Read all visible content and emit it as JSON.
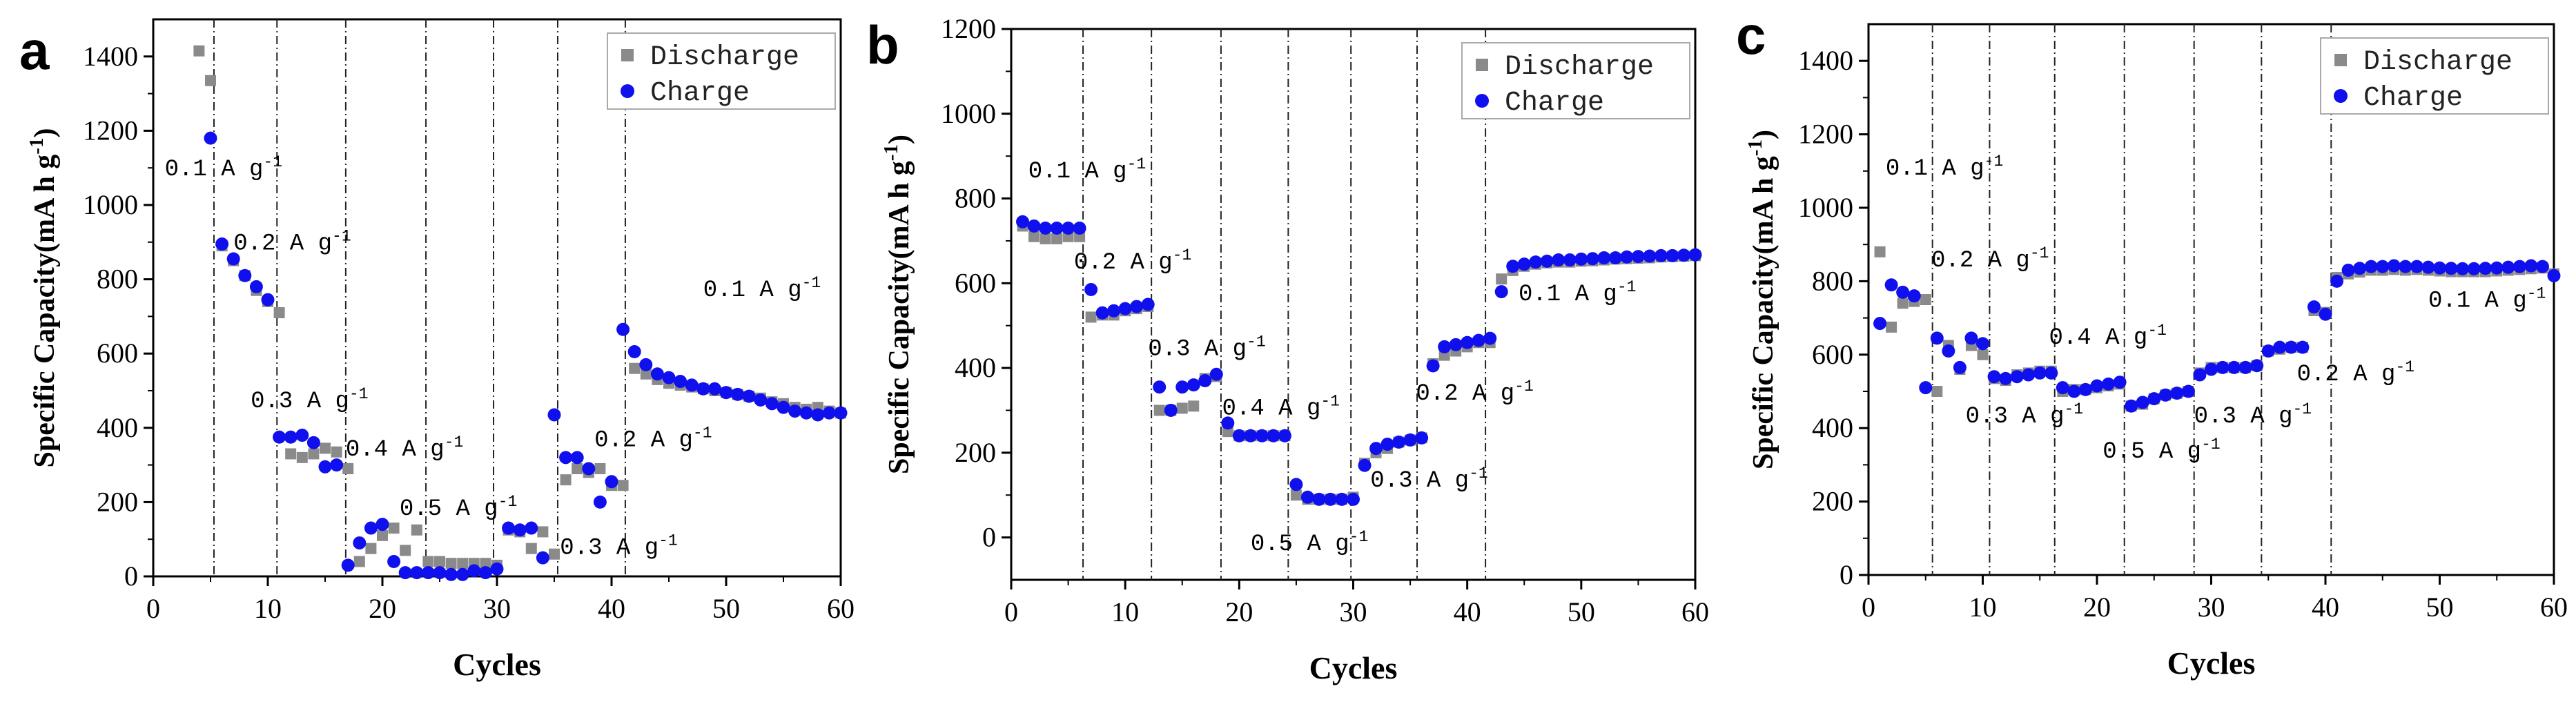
{
  "figure": {
    "panels": [
      "a",
      "b",
      "c"
    ],
    "colors": {
      "discharge": "#8a8a8a",
      "charge": "#1010ee",
      "axis": "#000000",
      "legend_border": "#aaaaaa"
    }
  },
  "chart_data": [
    {
      "type": "scatter",
      "panel_letter": "a",
      "xlabel": "Cycles",
      "ylabel": "Specific Capacity(mA h g",
      "ylabel_sup": "-1",
      "ylabel_end": ")",
      "xlim": [
        0,
        60
      ],
      "ylim": [
        0,
        1500
      ],
      "xticks": [
        0,
        10,
        20,
        30,
        40,
        50,
        60
      ],
      "yticks": [
        0,
        200,
        400,
        600,
        800,
        1000,
        1200,
        1400
      ],
      "legend": [
        "Discharge",
        "Charge"
      ],
      "legend_position": "top-right",
      "dividers": [
        5.3,
        10.8,
        16.8,
        23.8,
        29.7,
        35.3,
        41.2
      ],
      "annotations": [
        {
          "text": "0.1 A g",
          "x": 1,
          "y": 1080
        },
        {
          "text": "0.2 A g",
          "x": 7,
          "y": 880
        },
        {
          "text": "0.3 A g",
          "x": 8.5,
          "y": 455
        },
        {
          "text": "0.4 A g",
          "x": 16.8,
          "y": 325
        },
        {
          "text": "0.5 A g",
          "x": 21.5,
          "y": 165
        },
        {
          "text": "0.3 A g",
          "x": 35.5,
          "y": 60
        },
        {
          "text": "0.2 A g",
          "x": 38.5,
          "y": 350
        },
        {
          "text": "0.1 A g",
          "x": 48,
          "y": 755
        }
      ],
      "series": [
        {
          "name": "Discharge",
          "marker": "square",
          "x": [
            4,
            5,
            6,
            7,
            8,
            9,
            10,
            11,
            12,
            13,
            14,
            15,
            16,
            17,
            18,
            19,
            20,
            21,
            22,
            23,
            24,
            25,
            26,
            27,
            28,
            29,
            30,
            31,
            32,
            33,
            34,
            35,
            36,
            37,
            38,
            39,
            40,
            41,
            42,
            43,
            44,
            45,
            46,
            47,
            48,
            49,
            50,
            51,
            52,
            53,
            54,
            55,
            56,
            57,
            58,
            59,
            60
          ],
          "values": [
            1415,
            1335,
            890,
            850,
            810,
            770,
            740,
            710,
            330,
            320,
            330,
            345,
            335,
            290,
            40,
            75,
            110,
            130,
            70,
            125,
            40,
            40,
            35,
            35,
            35,
            35,
            30,
            125,
            120,
            75,
            120,
            60,
            260,
            290,
            280,
            290,
            245,
            245,
            560,
            545,
            530,
            520,
            515,
            510,
            505,
            500,
            495,
            490,
            485,
            480,
            470,
            465,
            455,
            450,
            455,
            445,
            440
          ]
        },
        {
          "name": "Charge",
          "marker": "circle",
          "x": [
            5,
            6,
            7,
            8,
            9,
            10,
            11,
            12,
            13,
            14,
            15,
            16,
            17,
            18,
            19,
            20,
            21,
            22,
            23,
            24,
            25,
            26,
            27,
            28,
            29,
            30,
            31,
            32,
            33,
            34,
            35,
            36,
            37,
            38,
            39,
            40,
            41,
            42,
            43,
            44,
            45,
            46,
            47,
            48,
            49,
            50,
            51,
            52,
            53,
            54,
            55,
            56,
            57,
            58,
            59,
            60
          ],
          "values": [
            1180,
            895,
            855,
            810,
            780,
            745,
            375,
            375,
            380,
            360,
            295,
            300,
            30,
            90,
            130,
            140,
            40,
            10,
            10,
            10,
            10,
            5,
            5,
            15,
            10,
            20,
            130,
            125,
            130,
            50,
            435,
            320,
            320,
            290,
            200,
            255,
            665,
            605,
            570,
            545,
            535,
            525,
            515,
            505,
            505,
            495,
            490,
            485,
            475,
            465,
            455,
            445,
            440,
            435,
            440,
            440
          ]
        }
      ]
    },
    {
      "type": "scatter",
      "panel_letter": "b",
      "xlabel": "Cycles",
      "ylabel": "Specific Capacity(mA h g",
      "ylabel_sup": "-1",
      "ylabel_end": ")",
      "xlim": [
        0,
        60
      ],
      "ylim": [
        -100,
        1200
      ],
      "xticks": [
        0,
        10,
        20,
        30,
        40,
        50,
        60
      ],
      "yticks": [
        0,
        200,
        400,
        600,
        800,
        1000,
        1200
      ],
      "legend": [
        "Discharge",
        "Charge"
      ],
      "legend_position": "top-right",
      "dividers": [
        6.3,
        12.3,
        18.4,
        24.3,
        29.8,
        35.6,
        41.6
      ],
      "annotations": [
        {
          "text": "0.1 A g",
          "x": 1.5,
          "y": 850
        },
        {
          "text": "0.2 A g",
          "x": 5.5,
          "y": 635
        },
        {
          "text": "0.3 A g",
          "x": 12,
          "y": 430
        },
        {
          "text": "0.4 A g",
          "x": 18.5,
          "y": 290
        },
        {
          "text": "0.5 A g",
          "x": 21,
          "y": -30
        },
        {
          "text": "0.3 A g",
          "x": 31.5,
          "y": 120
        },
        {
          "text": "0.2 A g",
          "x": 35.5,
          "y": 325
        },
        {
          "text": "0.1 A g",
          "x": 44.5,
          "y": 560
        }
      ],
      "series": [
        {
          "name": "Discharge",
          "marker": "square",
          "x": [
            1,
            2,
            3,
            4,
            5,
            6,
            7,
            8,
            9,
            10,
            11,
            12,
            13,
            14,
            15,
            16,
            17,
            18,
            19,
            20,
            21,
            22,
            23,
            24,
            25,
            26,
            27,
            28,
            29,
            30,
            31,
            32,
            33,
            34,
            35,
            36,
            37,
            38,
            39,
            40,
            41,
            42,
            43,
            44,
            45,
            46,
            47,
            48,
            49,
            50,
            51,
            52,
            53,
            54,
            55,
            56,
            57,
            58,
            59,
            60
          ],
          "values": [
            735,
            710,
            705,
            705,
            710,
            710,
            520,
            525,
            525,
            535,
            540,
            545,
            300,
            300,
            305,
            310,
            375,
            380,
            250,
            240,
            240,
            240,
            240,
            240,
            100,
            90,
            90,
            90,
            90,
            95,
            175,
            200,
            210,
            225,
            230,
            235,
            410,
            430,
            440,
            450,
            460,
            460,
            610,
            630,
            640,
            645,
            648,
            650,
            650,
            652,
            653,
            655,
            657,
            658,
            659,
            660,
            662,
            663,
            664,
            665
          ]
        },
        {
          "name": "Charge",
          "marker": "circle",
          "x": [
            1,
            2,
            3,
            4,
            5,
            6,
            7,
            8,
            9,
            10,
            11,
            12,
            13,
            14,
            15,
            16,
            17,
            18,
            19,
            20,
            21,
            22,
            23,
            24,
            25,
            26,
            27,
            28,
            29,
            30,
            31,
            32,
            33,
            34,
            35,
            36,
            37,
            38,
            39,
            40,
            41,
            42,
            43,
            44,
            45,
            46,
            47,
            48,
            49,
            50,
            51,
            52,
            53,
            54,
            55,
            56,
            57,
            58,
            59,
            60
          ],
          "values": [
            745,
            735,
            730,
            730,
            730,
            730,
            585,
            530,
            535,
            540,
            545,
            550,
            355,
            300,
            355,
            360,
            370,
            385,
            270,
            240,
            240,
            240,
            240,
            240,
            125,
            95,
            90,
            90,
            90,
            90,
            170,
            210,
            220,
            225,
            230,
            235,
            405,
            450,
            455,
            460,
            465,
            470,
            580,
            640,
            645,
            650,
            652,
            655,
            655,
            657,
            658,
            660,
            660,
            662,
            663,
            664,
            665,
            665,
            666,
            667
          ]
        }
      ]
    },
    {
      "type": "scatter",
      "panel_letter": "c",
      "xlabel": "Cycles",
      "ylabel": "Specific Capacity(mA h g",
      "ylabel_sup": "-1",
      "ylabel_end": ")",
      "xlim": [
        0,
        60
      ],
      "ylim": [
        0,
        1500
      ],
      "xticks": [
        0,
        10,
        20,
        30,
        40,
        50,
        60
      ],
      "yticks": [
        0,
        200,
        400,
        600,
        800,
        1000,
        1200,
        1400
      ],
      "legend": [
        "Discharge",
        "Charge"
      ],
      "legend_position": "top-right",
      "dividers": [
        5.6,
        10.6,
        16.3,
        22.4,
        28.5,
        34.4,
        40.5
      ],
      "annotations": [
        {
          "text": "0.1 A g",
          "x": 1.5,
          "y": 1090
        },
        {
          "text": "0.2 A g",
          "x": 5.5,
          "y": 840
        },
        {
          "text": "0.3 A g",
          "x": 8.5,
          "y": 415
        },
        {
          "text": "0.4 A g",
          "x": 15.8,
          "y": 630
        },
        {
          "text": "0.5 A g",
          "x": 20.5,
          "y": 320
        },
        {
          "text": "0.3 A g",
          "x": 28.5,
          "y": 415
        },
        {
          "text": "0.2 A g",
          "x": 37.5,
          "y": 530
        },
        {
          "text": "0.1 A g",
          "x": 49,
          "y": 730
        }
      ],
      "series": [
        {
          "name": "Discharge",
          "marker": "square",
          "x": [
            1,
            2,
            3,
            4,
            5,
            6,
            7,
            8,
            9,
            10,
            11,
            12,
            13,
            14,
            15,
            16,
            17,
            18,
            19,
            20,
            21,
            22,
            23,
            24,
            25,
            26,
            27,
            28,
            29,
            30,
            31,
            32,
            33,
            34,
            35,
            36,
            37,
            38,
            39,
            40,
            41,
            42,
            43,
            44,
            45,
            46,
            47,
            48,
            49,
            50,
            51,
            52,
            53,
            54,
            55,
            56,
            57,
            58,
            59,
            60
          ],
          "values": [
            880,
            675,
            740,
            745,
            750,
            500,
            625,
            560,
            625,
            600,
            535,
            530,
            545,
            550,
            555,
            555,
            500,
            505,
            505,
            510,
            515,
            520,
            460,
            465,
            480,
            490,
            495,
            500,
            550,
            565,
            565,
            565,
            565,
            570,
            610,
            615,
            620,
            620,
            720,
            715,
            810,
            820,
            825,
            830,
            830,
            832,
            830,
            832,
            830,
            828,
            826,
            826,
            826,
            826,
            828,
            830,
            832,
            834,
            836,
            820
          ]
        },
        {
          "name": "Charge",
          "marker": "circle",
          "x": [
            1,
            2,
            3,
            4,
            5,
            6,
            7,
            8,
            9,
            10,
            11,
            12,
            13,
            14,
            15,
            16,
            17,
            18,
            19,
            20,
            21,
            22,
            23,
            24,
            25,
            26,
            27,
            28,
            29,
            30,
            31,
            32,
            33,
            34,
            35,
            36,
            37,
            38,
            39,
            40,
            41,
            42,
            43,
            44,
            45,
            46,
            47,
            48,
            49,
            50,
            51,
            52,
            53,
            54,
            55,
            56,
            57,
            58,
            59,
            60
          ],
          "values": [
            685,
            790,
            770,
            760,
            510,
            645,
            610,
            565,
            645,
            630,
            540,
            535,
            540,
            545,
            550,
            550,
            510,
            500,
            505,
            515,
            520,
            525,
            460,
            470,
            480,
            490,
            495,
            500,
            545,
            560,
            565,
            565,
            565,
            570,
            610,
            620,
            620,
            620,
            730,
            710,
            800,
            830,
            835,
            840,
            840,
            842,
            840,
            840,
            838,
            836,
            835,
            834,
            834,
            835,
            836,
            838,
            840,
            842,
            840,
            815
          ]
        }
      ]
    }
  ]
}
